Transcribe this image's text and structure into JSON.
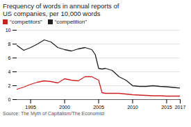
{
  "chart_data": {
    "type": "line",
    "title": "Frequency of words in annual reports of",
    "subtitle": "US companies, per 10,000 words",
    "caption": "Source: The Myth of Capitalism/The Economist",
    "xlim": [
      1993,
      2017
    ],
    "xticks": [
      1995,
      2000,
      2005,
      2010,
      2015,
      2017
    ],
    "ylim": [
      0,
      10
    ],
    "yticks": [
      0,
      2,
      4,
      6,
      8,
      10
    ],
    "grid": true,
    "legend": "upper left",
    "series": [
      {
        "name": "“competitors”",
        "color": "#cc2222",
        "x": [
          1993,
          1994,
          1995,
          1996,
          1997,
          1998,
          1999,
          2000,
          2001,
          2002,
          2003,
          2004,
          2005,
          2005.5,
          2006,
          2007,
          2008,
          2009,
          2010,
          2011,
          2012,
          2013,
          2014,
          2015,
          2016,
          2017
        ],
        "values": [
          1.5,
          1.8,
          2.2,
          2.5,
          2.7,
          2.6,
          2.4,
          3.0,
          2.8,
          2.7,
          3.3,
          3.3,
          2.8,
          1.0,
          0.9,
          0.9,
          0.9,
          0.8,
          0.7,
          0.65,
          0.6,
          0.55,
          0.55,
          0.5,
          0.5,
          0.5
        ]
      },
      {
        "name": "“competition”",
        "color": "#222222",
        "x": [
          1993,
          1994,
          1995,
          1996,
          1997,
          1998,
          1999,
          2000,
          2001,
          2002,
          2003,
          2004,
          2004.5,
          2005,
          2005.5,
          2006,
          2007,
          2008,
          2009,
          2010,
          2011,
          2012,
          2013,
          2014,
          2015,
          2016,
          2017
        ],
        "values": [
          7.8,
          7.1,
          7.5,
          8.0,
          8.6,
          8.3,
          7.5,
          7.2,
          7.0,
          7.3,
          7.5,
          7.2,
          6.5,
          4.5,
          4.4,
          4.5,
          4.2,
          3.3,
          2.8,
          2.0,
          1.9,
          1.9,
          2.0,
          1.9,
          1.85,
          1.75,
          1.65
        ]
      }
    ]
  }
}
